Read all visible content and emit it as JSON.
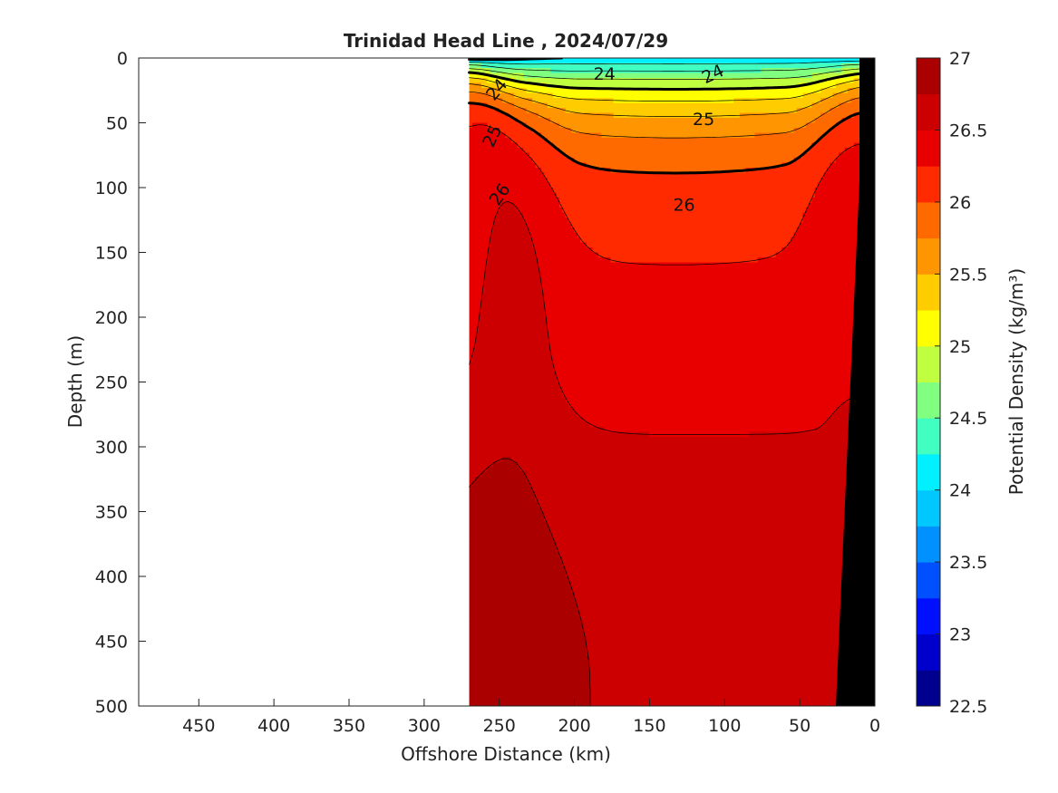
{
  "chart_data": {
    "type": "heatmap",
    "title": "Trinidad Head Line , 2024/07/29",
    "xlabel": "Offshore Distance (km)",
    "ylabel": "Depth (m)",
    "colorbar_label": "Potential Density (kg/m³)",
    "x_range": [
      490,
      0
    ],
    "y_range": [
      0,
      500
    ],
    "x_ticks": [
      450,
      400,
      350,
      300,
      250,
      200,
      150,
      100,
      50,
      0
    ],
    "y_ticks": [
      0,
      50,
      100,
      150,
      200,
      250,
      300,
      350,
      400,
      450,
      500
    ],
    "data_x_extent": [
      270,
      10
    ],
    "colorbar_range": [
      22.5,
      27
    ],
    "colorbar_step": 0.25,
    "colorbar_ticks": [
      "22.5",
      "23",
      "23.5",
      "24",
      "24.5",
      "25",
      "25.5",
      "26",
      "26.5",
      "27"
    ],
    "colorscale": [
      "#00008f",
      "#0000cc",
      "#0010ff",
      "#0050ff",
      "#0090ff",
      "#00c8ff",
      "#00f0ff",
      "#40ffc0",
      "#80ff80",
      "#c0ff40",
      "#ffff00",
      "#ffcc00",
      "#ff9500",
      "#ff6a00",
      "#ff2a00",
      "#e80000",
      "#cc0000",
      "#aa0000"
    ],
    "bottom_color": "#000000",
    "contour_labels": [
      {
        "text": "24",
        "x": 180,
        "y": 12,
        "angle": 0
      },
      {
        "text": "24",
        "x": 108,
        "y": 12,
        "angle": -25
      },
      {
        "text": "24",
        "x": 252,
        "y": 24,
        "angle": -50
      },
      {
        "text": "25",
        "x": 114,
        "y": 47,
        "angle": 0
      },
      {
        "text": "25",
        "x": 255,
        "y": 60,
        "angle": -65
      },
      {
        "text": "26",
        "x": 127,
        "y": 113,
        "angle": 0
      },
      {
        "text": "26",
        "x": 250,
        "y": 105,
        "angle": -55
      }
    ],
    "isolines_labeled": [
      24,
      25,
      26
    ],
    "grid": false
  }
}
